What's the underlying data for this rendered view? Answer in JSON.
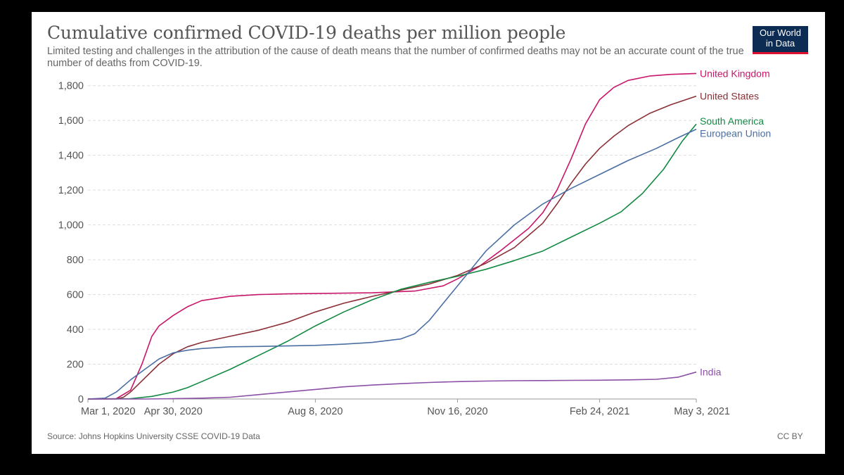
{
  "header": {
    "title": "Cumulative confirmed COVID-19 deaths per million people",
    "subtitle": "Limited testing and challenges in the attribution of the cause of death means that the number of confirmed deaths may not be an accurate count of the true number of deaths from COVID-19.",
    "logo_line1": "Our World",
    "logo_line2": "in Data"
  },
  "footer": {
    "source": "Source: Johns Hopkins University CSSE COVID-19 Data",
    "license": "CC BY"
  },
  "chart_data": {
    "type": "line",
    "title": "Cumulative confirmed COVID-19 deaths per million people",
    "xlabel": "",
    "ylabel": "",
    "x_unit": "days since Mar 1, 2020",
    "xlim": [
      0,
      428
    ],
    "ylim": [
      0,
      1900
    ],
    "yticks": [
      0,
      200,
      400,
      600,
      800,
      1000,
      1200,
      1400,
      1600,
      1800
    ],
    "ytick_labels": [
      "0",
      "200",
      "400",
      "600",
      "800",
      "1,000",
      "1,200",
      "1,400",
      "1,600",
      "1,800"
    ],
    "xticks": [
      {
        "day": 0,
        "label": "Mar 1, 2020"
      },
      {
        "day": 60,
        "label": "Apr 30, 2020"
      },
      {
        "day": 160,
        "label": "Aug 8, 2020"
      },
      {
        "day": 260,
        "label": "Nov 16, 2020"
      },
      {
        "day": 360,
        "label": "Feb 24, 2021"
      },
      {
        "day": 428,
        "label": "May 3, 2021"
      }
    ],
    "grid": true,
    "series": [
      {
        "name": "United Kingdom",
        "color": "#c8166a",
        "points": [
          [
            0,
            0
          ],
          [
            20,
            2
          ],
          [
            30,
            50
          ],
          [
            38,
            200
          ],
          [
            45,
            360
          ],
          [
            50,
            420
          ],
          [
            60,
            480
          ],
          [
            70,
            530
          ],
          [
            80,
            565
          ],
          [
            100,
            590
          ],
          [
            120,
            600
          ],
          [
            140,
            604
          ],
          [
            160,
            606
          ],
          [
            200,
            610
          ],
          [
            230,
            620
          ],
          [
            250,
            650
          ],
          [
            260,
            690
          ],
          [
            275,
            760
          ],
          [
            290,
            850
          ],
          [
            310,
            980
          ],
          [
            320,
            1070
          ],
          [
            330,
            1200
          ],
          [
            340,
            1380
          ],
          [
            350,
            1580
          ],
          [
            360,
            1720
          ],
          [
            370,
            1790
          ],
          [
            380,
            1830
          ],
          [
            395,
            1855
          ],
          [
            410,
            1865
          ],
          [
            428,
            1870
          ]
        ]
      },
      {
        "name": "United States",
        "color": "#8a3036",
        "points": [
          [
            0,
            0
          ],
          [
            20,
            0
          ],
          [
            25,
            10
          ],
          [
            30,
            40
          ],
          [
            40,
            120
          ],
          [
            50,
            200
          ],
          [
            60,
            260
          ],
          [
            70,
            300
          ],
          [
            80,
            325
          ],
          [
            100,
            360
          ],
          [
            120,
            395
          ],
          [
            140,
            440
          ],
          [
            160,
            500
          ],
          [
            180,
            550
          ],
          [
            200,
            590
          ],
          [
            220,
            625
          ],
          [
            240,
            660
          ],
          [
            260,
            710
          ],
          [
            280,
            780
          ],
          [
            300,
            870
          ],
          [
            320,
            1010
          ],
          [
            330,
            1120
          ],
          [
            340,
            1240
          ],
          [
            350,
            1350
          ],
          [
            360,
            1440
          ],
          [
            370,
            1510
          ],
          [
            380,
            1570
          ],
          [
            395,
            1640
          ],
          [
            410,
            1690
          ],
          [
            428,
            1740
          ]
        ]
      },
      {
        "name": "South America",
        "color": "#138a43",
        "points": [
          [
            0,
            0
          ],
          [
            30,
            2
          ],
          [
            45,
            15
          ],
          [
            60,
            40
          ],
          [
            70,
            65
          ],
          [
            80,
            100
          ],
          [
            100,
            170
          ],
          [
            120,
            250
          ],
          [
            140,
            330
          ],
          [
            160,
            420
          ],
          [
            180,
            500
          ],
          [
            200,
            570
          ],
          [
            220,
            630
          ],
          [
            240,
            670
          ],
          [
            260,
            705
          ],
          [
            280,
            745
          ],
          [
            300,
            795
          ],
          [
            320,
            850
          ],
          [
            340,
            930
          ],
          [
            360,
            1010
          ],
          [
            375,
            1075
          ],
          [
            390,
            1180
          ],
          [
            405,
            1320
          ],
          [
            418,
            1480
          ],
          [
            428,
            1580
          ]
        ]
      },
      {
        "name": "European Union",
        "color": "#4b6fa3",
        "points": [
          [
            0,
            0
          ],
          [
            12,
            5
          ],
          [
            20,
            40
          ],
          [
            30,
            110
          ],
          [
            40,
            170
          ],
          [
            50,
            230
          ],
          [
            60,
            265
          ],
          [
            70,
            280
          ],
          [
            80,
            290
          ],
          [
            100,
            300
          ],
          [
            120,
            302
          ],
          [
            140,
            305
          ],
          [
            160,
            308
          ],
          [
            180,
            315
          ],
          [
            200,
            325
          ],
          [
            220,
            345
          ],
          [
            230,
            375
          ],
          [
            240,
            450
          ],
          [
            250,
            550
          ],
          [
            260,
            650
          ],
          [
            270,
            750
          ],
          [
            280,
            850
          ],
          [
            300,
            1000
          ],
          [
            320,
            1120
          ],
          [
            340,
            1210
          ],
          [
            360,
            1290
          ],
          [
            380,
            1370
          ],
          [
            400,
            1440
          ],
          [
            415,
            1500
          ],
          [
            428,
            1550
          ]
        ]
      },
      {
        "name": "India",
        "color": "#8b4fa6",
        "points": [
          [
            0,
            0
          ],
          [
            40,
            0
          ],
          [
            60,
            2
          ],
          [
            80,
            5
          ],
          [
            100,
            10
          ],
          [
            120,
            25
          ],
          [
            140,
            40
          ],
          [
            160,
            55
          ],
          [
            180,
            70
          ],
          [
            200,
            80
          ],
          [
            220,
            88
          ],
          [
            240,
            95
          ],
          [
            260,
            100
          ],
          [
            280,
            103
          ],
          [
            300,
            105
          ],
          [
            320,
            106
          ],
          [
            340,
            107
          ],
          [
            360,
            108
          ],
          [
            380,
            110
          ],
          [
            400,
            113
          ],
          [
            415,
            125
          ],
          [
            428,
            155
          ]
        ]
      }
    ]
  }
}
